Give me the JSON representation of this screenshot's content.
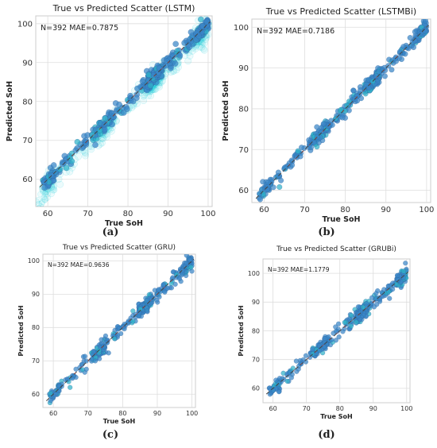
{
  "panel_letters": [
    "(a)",
    "(b)",
    "(c)",
    "(d)"
  ],
  "colors": {
    "point": "#3a87c8",
    "point_edge": "#2a5f99",
    "accent": "#13c9d6",
    "reference": "#c0392b",
    "grid": "#dddddd",
    "frame": "#cccccc"
  },
  "chart_data": [
    {
      "type": "scatter",
      "title": "True vs Predicted Scatter (LSTM)",
      "xlabel": "True SoH",
      "ylabel": "Predicted SoH",
      "annotation": "N=392  MAE=0.7875",
      "xlim": [
        57,
        101
      ],
      "ylim": [
        53,
        102
      ],
      "xticks": [
        60,
        70,
        80,
        90,
        100
      ],
      "yticks": [
        60,
        70,
        80,
        90,
        100
      ],
      "grid": true,
      "reference_line": "y = x",
      "points_summary": [
        [
          59,
          59.5
        ],
        [
          61,
          61
        ],
        [
          63,
          63.5
        ],
        [
          66,
          65.5
        ],
        [
          69,
          69
        ],
        [
          73,
          73
        ],
        [
          76,
          76.5
        ],
        [
          80,
          80
        ],
        [
          84,
          84
        ],
        [
          86,
          86
        ],
        [
          87,
          87
        ],
        [
          90,
          90
        ],
        [
          94,
          94
        ],
        [
          97,
          97
        ],
        [
          99.5,
          100
        ]
      ]
    },
    {
      "type": "scatter",
      "title": "True vs Predicted Scatter (LSTMBi)",
      "xlabel": "True SoH",
      "ylabel": "Predicted SoH",
      "annotation": "N=392  MAE=0.7186",
      "xlim": [
        57,
        101
      ],
      "ylim": [
        57,
        102
      ],
      "xticks": [
        60,
        70,
        80,
        90,
        100
      ],
      "yticks": [
        60,
        70,
        80,
        90,
        100
      ],
      "grid": true,
      "reference_line": "y = x",
      "points_summary": [
        [
          59,
          59.5
        ],
        [
          61,
          61
        ],
        [
          63,
          63.5
        ],
        [
          66,
          65.5
        ],
        [
          69,
          69
        ],
        [
          73,
          73.5
        ],
        [
          76,
          76.5
        ],
        [
          80,
          80
        ],
        [
          84,
          84
        ],
        [
          86,
          86.5
        ],
        [
          87,
          87
        ],
        [
          90,
          90
        ],
        [
          94,
          94
        ],
        [
          97,
          97
        ],
        [
          99.5,
          100
        ]
      ]
    },
    {
      "type": "scatter",
      "title": "True vs Predicted Scatter (GRU)",
      "xlabel": "True SoH",
      "ylabel": "Predicted SoH",
      "annotation": "N=392  MAE=0.9636",
      "xlim": [
        57,
        101
      ],
      "ylim": [
        56,
        102
      ],
      "xticks": [
        60,
        70,
        80,
        90,
        100
      ],
      "yticks": [
        60,
        70,
        80,
        90,
        100
      ],
      "grid": true,
      "reference_line": "y = x",
      "points_summary": [
        [
          59,
          59
        ],
        [
          61,
          61
        ],
        [
          63,
          63
        ],
        [
          66,
          65.5
        ],
        [
          69,
          69
        ],
        [
          73,
          73
        ],
        [
          76,
          76.5
        ],
        [
          80,
          80
        ],
        [
          84,
          84
        ],
        [
          86,
          86
        ],
        [
          87,
          87.5
        ],
        [
          90,
          90
        ],
        [
          94,
          94
        ],
        [
          97,
          97
        ],
        [
          99.5,
          100
        ]
      ]
    },
    {
      "type": "scatter",
      "title": "True vs Predicted Scatter (GRUBi)",
      "xlabel": "True SoH",
      "ylabel": "Predicted SoH",
      "annotation": "N=392  MAE=1.1779",
      "xlim": [
        57,
        101
      ],
      "ylim": [
        55,
        105
      ],
      "xticks": [
        60,
        70,
        80,
        90,
        100
      ],
      "yticks": [
        60,
        70,
        80,
        90,
        100
      ],
      "grid": true,
      "reference_line": "y = x",
      "points_summary": [
        [
          59,
          59
        ],
        [
          61,
          61
        ],
        [
          63,
          63.5
        ],
        [
          66,
          66
        ],
        [
          69,
          69
        ],
        [
          73,
          73
        ],
        [
          76,
          76.5
        ],
        [
          80,
          80
        ],
        [
          84,
          84
        ],
        [
          86,
          86.5
        ],
        [
          87,
          87
        ],
        [
          90,
          90
        ],
        [
          94,
          94.5
        ],
        [
          97,
          97
        ],
        [
          99.5,
          100
        ]
      ]
    }
  ]
}
